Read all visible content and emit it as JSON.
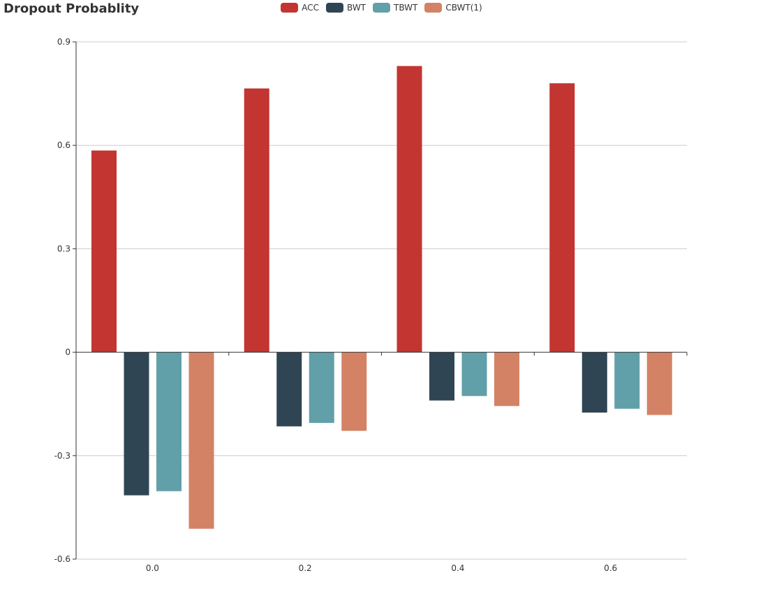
{
  "chart_data": {
    "type": "bar",
    "title": "Dropout Probablity",
    "xlabel": "",
    "ylabel": "",
    "categories": [
      "0.0",
      "0.2",
      "0.4",
      "0.6"
    ],
    "ylim": [
      -0.6,
      0.9
    ],
    "yticks": [
      "0.9",
      "0.6",
      "0.3",
      "0",
      "-0.3",
      "-0.6"
    ],
    "grid": true,
    "legend_position": "top-center",
    "series": [
      {
        "name": "ACC",
        "color": "#c23531",
        "values": [
          0.585,
          0.765,
          0.83,
          0.78
        ]
      },
      {
        "name": "BWT",
        "color": "#2f4554",
        "values": [
          -0.415,
          -0.215,
          -0.14,
          -0.175
        ]
      },
      {
        "name": "TBWT",
        "color": "#61a0a8",
        "values": [
          -0.403,
          -0.205,
          -0.127,
          -0.164
        ]
      },
      {
        "name": "CBWT(1)",
        "color": "#d48265",
        "values": [
          -0.512,
          -0.228,
          -0.156,
          -0.182
        ]
      }
    ]
  }
}
